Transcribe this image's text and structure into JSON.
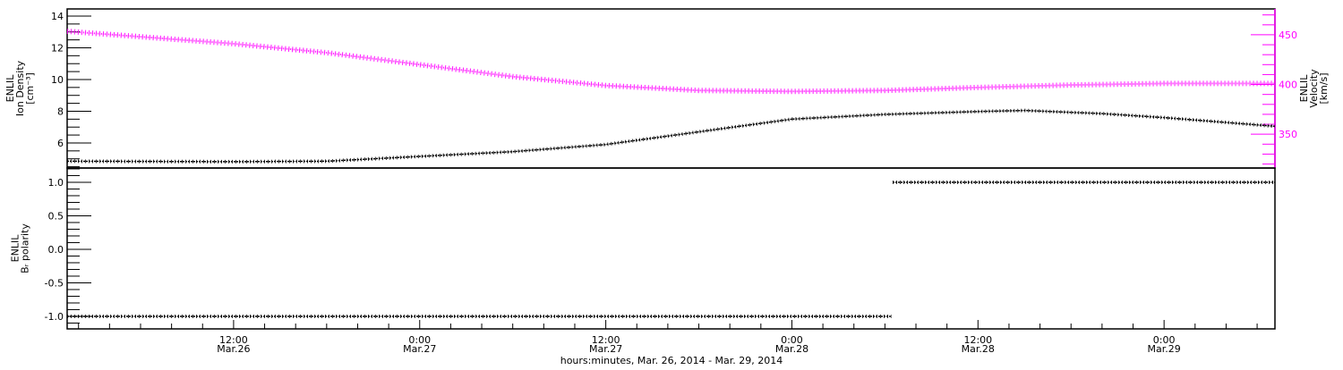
{
  "chart_data": [
    {
      "type": "line",
      "panel": "top",
      "xlabel": "hours:minutes, Mar. 26, 2014 - Mar. 29, 2014",
      "xlim": [
        "2014-03-26T01:16",
        "2014-03-29T07:09"
      ],
      "ylabel_left": [
        "ENLIL",
        "Ion Density",
        "[cm⁻³]"
      ],
      "ylim_left": [
        4.42,
        14.45
      ],
      "yticks_left": [
        6,
        8,
        10,
        12,
        14
      ],
      "ylabel_right": [
        "ENLIL",
        "Velocity",
        "[km/s]"
      ],
      "ylim_right": [
        316,
        476
      ],
      "yticks_right": [
        350,
        400,
        450
      ],
      "right_axis_color": "#ff00ff",
      "grid": false,
      "series": [
        {
          "axis": "left",
          "color": "#000000",
          "points": [
            [
              "2014-03-26T01:16",
              4.85
            ],
            [
              "2014-03-26T12:00",
              4.82
            ],
            [
              "2014-03-26T18:00",
              4.85
            ],
            [
              "2014-03-27T00:00",
              5.15
            ],
            [
              "2014-03-27T06:00",
              5.45
            ],
            [
              "2014-03-27T12:00",
              5.9
            ],
            [
              "2014-03-27T18:00",
              6.7
            ],
            [
              "2014-03-28T00:00",
              7.5
            ],
            [
              "2014-03-28T06:00",
              7.8
            ],
            [
              "2014-03-28T12:00",
              7.98
            ],
            [
              "2014-03-28T15:00",
              8.05
            ],
            [
              "2014-03-28T20:00",
              7.85
            ],
            [
              "2014-03-29T00:00",
              7.6
            ],
            [
              "2014-03-29T07:09",
              7.05
            ]
          ]
        },
        {
          "axis": "right",
          "color": "#ff00ff",
          "points": [
            [
              "2014-03-26T01:16",
              453.5
            ],
            [
              "2014-03-26T12:00",
              441
            ],
            [
              "2014-03-26T18:00",
              432
            ],
            [
              "2014-03-27T00:00",
              420
            ],
            [
              "2014-03-27T06:00",
              408
            ],
            [
              "2014-03-27T12:00",
              399
            ],
            [
              "2014-03-27T18:00",
              394
            ],
            [
              "2014-03-28T00:00",
              393
            ],
            [
              "2014-03-28T06:00",
              394
            ],
            [
              "2014-03-28T12:00",
              397
            ],
            [
              "2014-03-28T18:00",
              399.5
            ],
            [
              "2014-03-29T00:00",
              401
            ],
            [
              "2014-03-29T07:09",
              401
            ]
          ]
        }
      ]
    },
    {
      "type": "line",
      "panel": "bottom",
      "ylabel_left": [
        "ENLIL",
        "Bᵣ polarity"
      ],
      "ylim_left": [
        -1.187,
        1.213
      ],
      "yticks_left": [
        "1.0",
        "0.5",
        "0.0",
        "-0.5",
        "-1.0"
      ],
      "grid": false,
      "series": [
        {
          "color": "#000000",
          "points": [
            [
              "2014-03-26T01:16",
              -1
            ],
            [
              "2014-03-28T06:25",
              -1
            ],
            [
              "2014-03-28T06:30",
              1
            ],
            [
              "2014-03-29T07:09",
              1
            ]
          ]
        }
      ]
    }
  ],
  "x_ticks": [
    {
      "time": "2014-03-26T12:00",
      "line1": "12:00",
      "line2": "Mar.26"
    },
    {
      "time": "2014-03-27T00:00",
      "line1": "0:00",
      "line2": "Mar.27"
    },
    {
      "time": "2014-03-27T12:00",
      "line1": "12:00",
      "line2": "Mar.27"
    },
    {
      "time": "2014-03-28T00:00",
      "line1": "0:00",
      "line2": "Mar.28"
    },
    {
      "time": "2014-03-28T12:00",
      "line1": "12:00",
      "line2": "Mar.28"
    },
    {
      "time": "2014-03-29T00:00",
      "line1": "0:00",
      "line2": "Mar.29"
    }
  ]
}
